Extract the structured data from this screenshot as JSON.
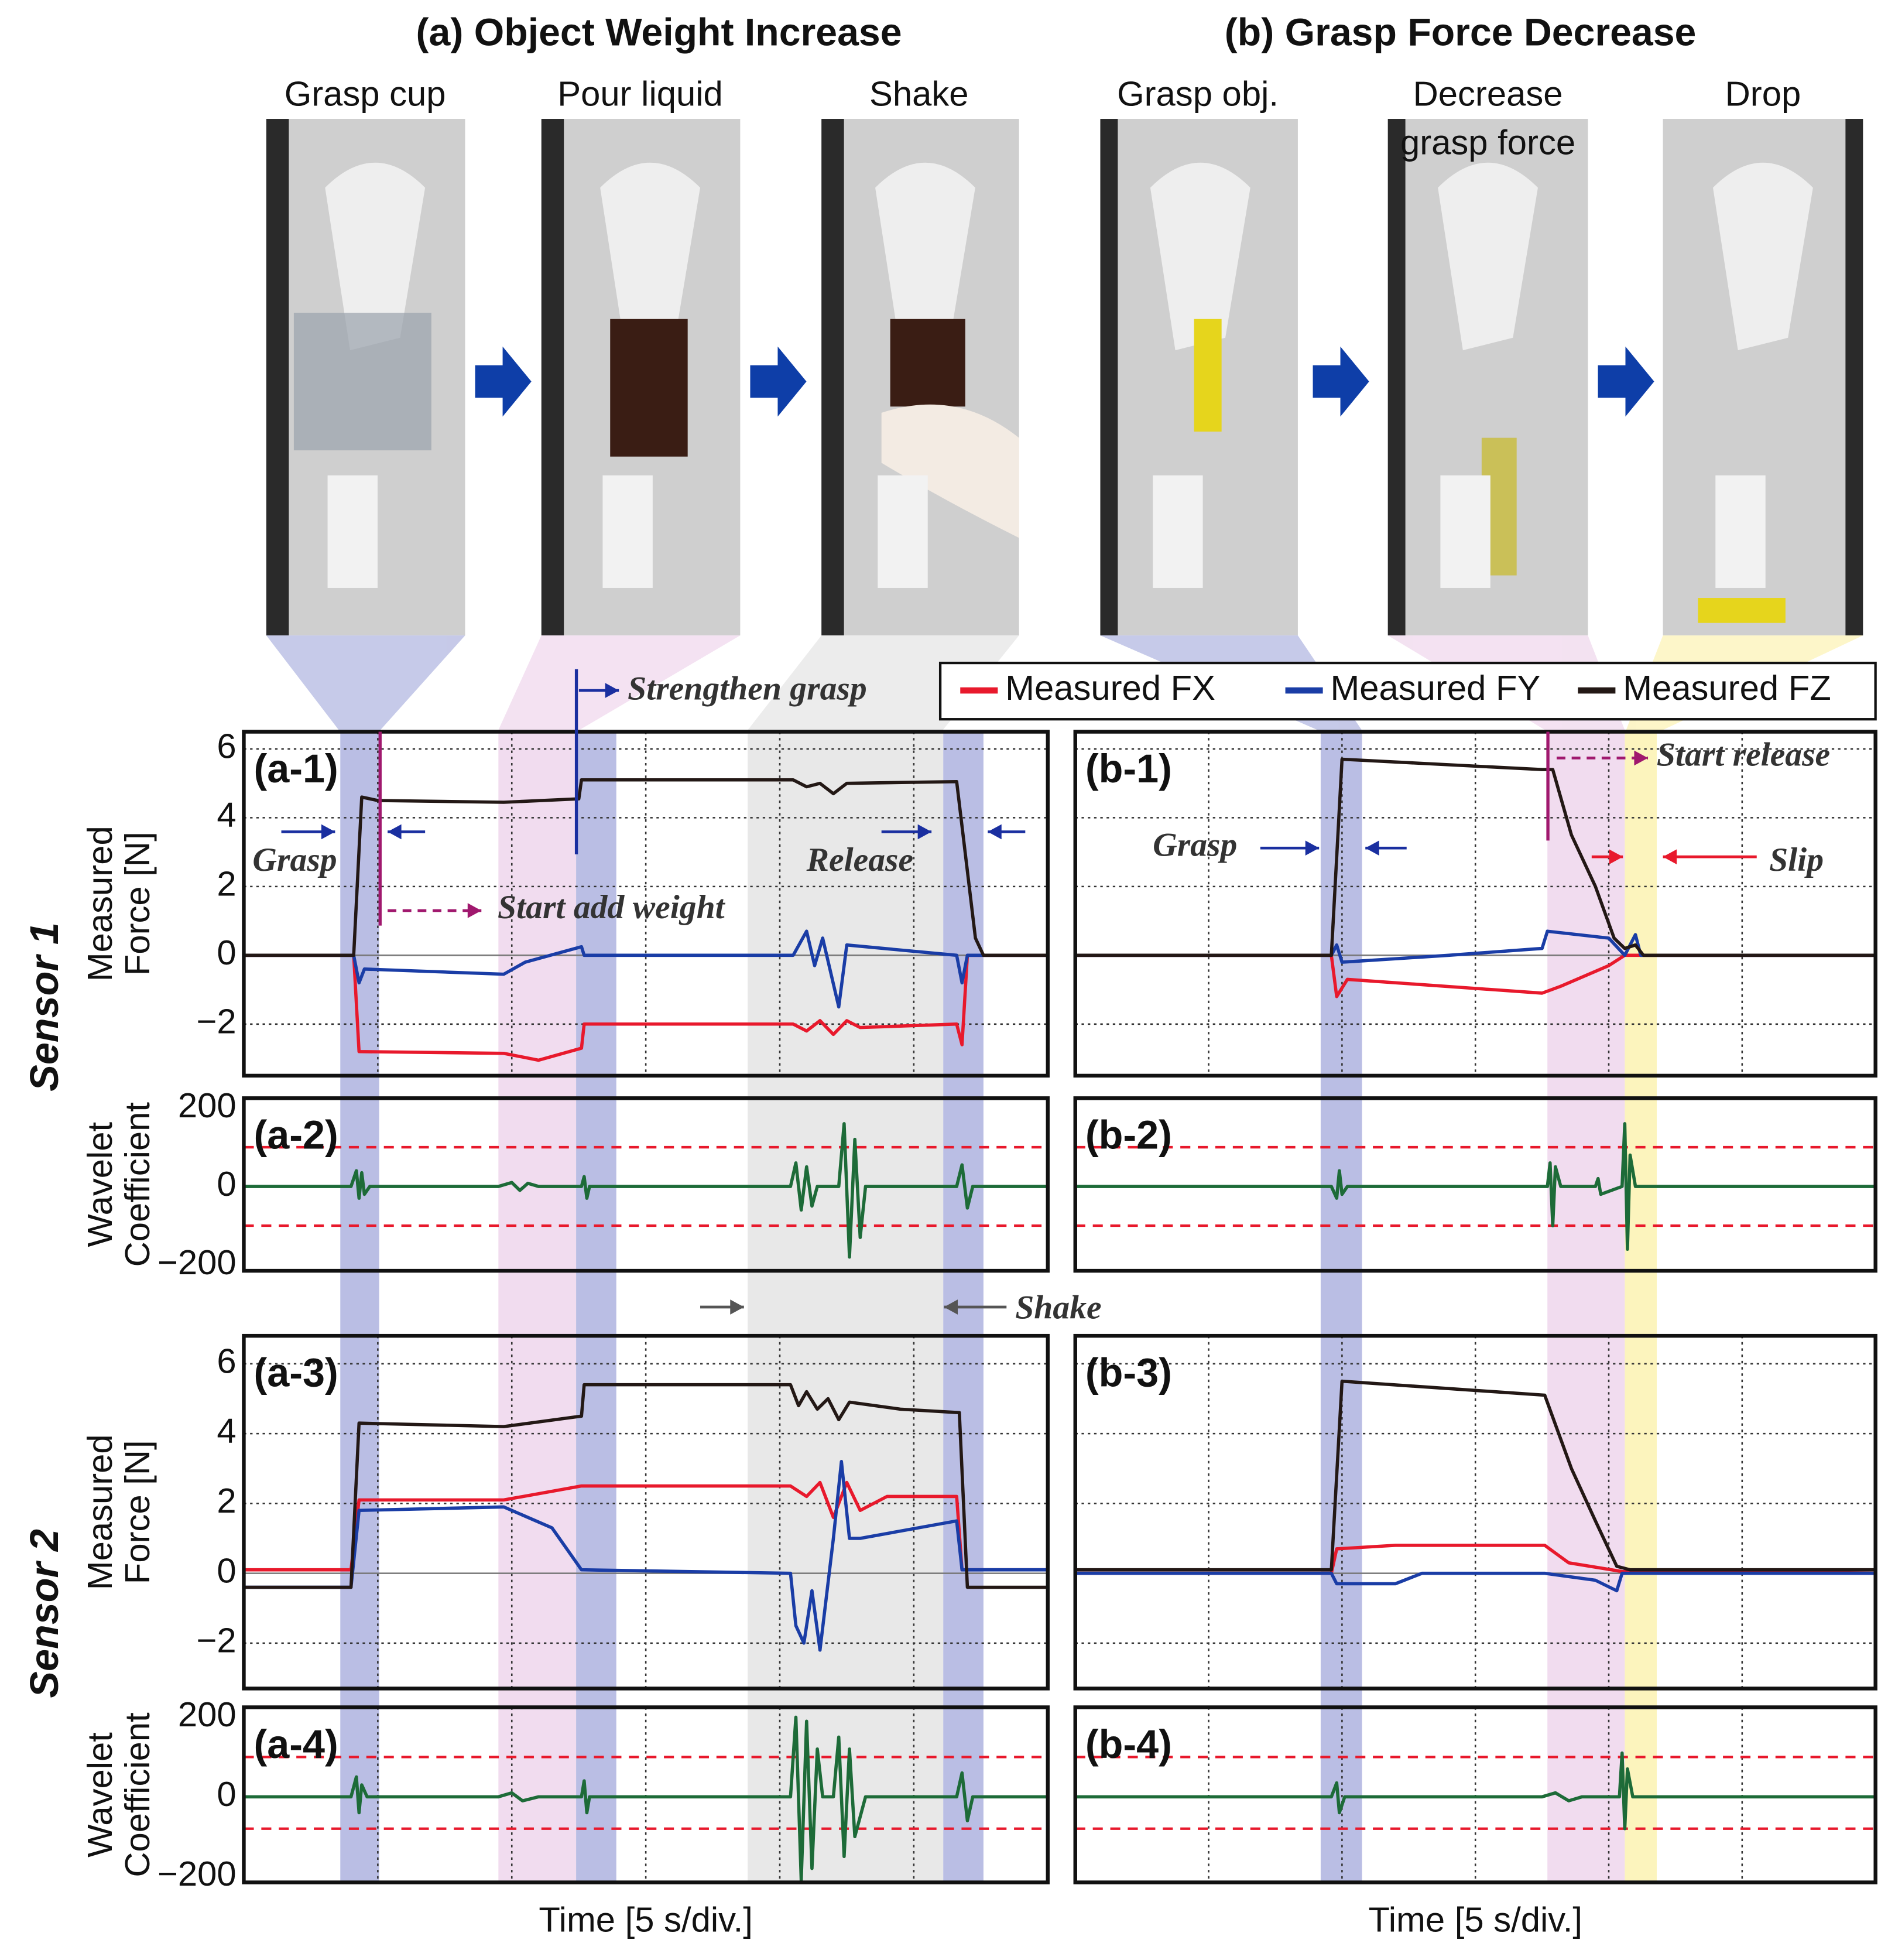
{
  "figure": {
    "titles": [
      "(a) Object Weight Increase",
      "(b) Grasp Force Decrease"
    ],
    "photo_captions": [
      "Grasp cup",
      "Pour liquid",
      "Shake",
      "Grasp obj.",
      [
        "Decrease",
        "grasp force"
      ],
      "Drop"
    ],
    "row_labels": [
      "Sensor 1",
      "Sensor 2"
    ]
  },
  "chart_data": [
    {
      "type": "line",
      "title": "(a-1)",
      "ylabel": [
        "Measured",
        "Force [N]"
      ],
      "grid": "both",
      "xlim": [
        0,
        30
      ],
      "xticks": [
        5,
        10,
        15,
        20,
        25
      ],
      "ylim": [
        -3.5,
        6.5
      ],
      "yticks": [
        {
          "value": -2,
          "label": "−2"
        },
        0,
        2,
        4,
        6
      ],
      "regions": [
        {
          "start": 3.6,
          "end": 5.05,
          "color": "#aeb3df"
        },
        {
          "start": 9.5,
          "end": 12.4,
          "color": "#efd6ec"
        },
        {
          "start": 12.4,
          "end": 13.9,
          "color": "#aeb3df"
        },
        {
          "start": 18.8,
          "end": 26.1,
          "color": "#e4e4e4"
        },
        {
          "start": 26.1,
          "end": 27.6,
          "color": "#aeb3df"
        }
      ],
      "annotations": [
        "Strengthen grasp",
        "Grasp",
        "Release",
        "Start add weight"
      ],
      "series": [
        {
          "name": "Measured FX",
          "color": "#e8192c",
          "x": [
            0,
            4.1,
            4.3,
            9.7,
            11,
            12.6,
            12.7,
            20.5,
            21,
            21.5,
            22,
            22.5,
            23,
            26.6,
            26.8,
            27,
            30
          ],
          "values": [
            0,
            0,
            -2.8,
            -2.85,
            -3.05,
            -2.7,
            -2.0,
            -2.0,
            -2.2,
            -1.9,
            -2.3,
            -1.9,
            -2.1,
            -2.0,
            -2.6,
            0,
            0
          ]
        },
        {
          "name": "Measured FY",
          "color": "#1a3da6",
          "x": [
            0,
            4.1,
            4.3,
            4.5,
            9.7,
            10.5,
            12.6,
            12.7,
            20.5,
            21,
            21.3,
            21.6,
            22.2,
            22.5,
            26.6,
            26.8,
            27,
            30
          ],
          "values": [
            0,
            0,
            -0.8,
            -0.4,
            -0.55,
            -0.2,
            0.25,
            0,
            0,
            0.7,
            -0.3,
            0.5,
            -1.5,
            0.3,
            0,
            -0.8,
            0,
            0
          ]
        },
        {
          "name": "Measured FZ",
          "color": "#231815",
          "x": [
            0,
            4.1,
            4.4,
            5,
            9.7,
            12.5,
            12.6,
            20.5,
            21,
            21.5,
            22,
            22.5,
            26.6,
            27.3,
            27.6,
            30
          ],
          "values": [
            0,
            0,
            4.6,
            4.5,
            4.45,
            4.55,
            5.1,
            5.1,
            4.9,
            5.0,
            4.7,
            5.0,
            5.05,
            0.5,
            0,
            0
          ]
        }
      ]
    },
    {
      "type": "line",
      "title": "(a-2)",
      "ylabel": [
        "Wavelet",
        "Coefficient"
      ],
      "grid": "none",
      "xlim": [
        0,
        30
      ],
      "ylim": [
        -215,
        225
      ],
      "yticks": [
        {
          "value": -200,
          "label": "−200"
        },
        0,
        200
      ],
      "thresholds": [
        100,
        -100
      ],
      "threshold_color": "#e8192c",
      "annotations": [
        "Shake"
      ],
      "series": [
        {
          "color": "#1d6b38",
          "x": [
            0,
            4,
            4.2,
            4.3,
            4.4,
            4.5,
            4.7,
            9.5,
            10,
            10.3,
            10.6,
            11,
            12.6,
            12.7,
            12.8,
            12.9,
            20.4,
            20.6,
            20.8,
            21,
            21.2,
            21.4,
            22.2,
            22.4,
            22.6,
            22.8,
            23,
            23.2,
            26.6,
            26.8,
            27,
            27.2,
            30
          ],
          "values": [
            0,
            0,
            40,
            -30,
            35,
            -20,
            0,
            0,
            10,
            -10,
            8,
            0,
            0,
            25,
            -30,
            0,
            0,
            60,
            -60,
            50,
            -50,
            0,
            0,
            160,
            -180,
            120,
            -130,
            0,
            0,
            55,
            -55,
            0,
            0
          ]
        }
      ]
    },
    {
      "type": "line",
      "title": "(a-3)",
      "ylabel": [
        "Measured",
        "Force [N]"
      ],
      "grid": "both",
      "xlim": [
        0,
        30
      ],
      "xticks": [
        5,
        10,
        15,
        20,
        25
      ],
      "ylim": [
        -3.3,
        6.8
      ],
      "yticks": [
        {
          "value": -2,
          "label": "−2"
        },
        0,
        2,
        4,
        6
      ],
      "series": [
        {
          "color": "#e8192c",
          "x": [
            0,
            4,
            4.3,
            9.7,
            12.6,
            20.4,
            21,
            21.5,
            22,
            22.5,
            23,
            24,
            26.6,
            26.8,
            30
          ],
          "values": [
            0.1,
            0.1,
            2.1,
            2.1,
            2.5,
            2.5,
            2.2,
            2.6,
            1.6,
            2.6,
            1.8,
            2.2,
            2.2,
            0.1,
            0.1
          ]
        },
        {
          "color": "#1a3da6",
          "x": [
            0,
            4,
            4.3,
            9.7,
            11.5,
            12.6,
            20.4,
            20.6,
            20.9,
            21.2,
            21.5,
            22,
            22.3,
            22.6,
            23,
            26.6,
            26.8,
            30
          ],
          "values": [
            -0.4,
            -0.4,
            1.8,
            1.9,
            1.3,
            0.1,
            0,
            -1.5,
            -2.0,
            -0.5,
            -2.2,
            1.0,
            3.2,
            1.0,
            1.0,
            1.5,
            0.1,
            0.1
          ]
        },
        {
          "color": "#231815",
          "x": [
            0,
            4,
            4.3,
            9.7,
            12.6,
            12.7,
            20.4,
            20.7,
            21,
            21.4,
            21.8,
            22.2,
            22.6,
            24.5,
            26.7,
            27,
            30
          ],
          "values": [
            -0.4,
            -0.4,
            4.3,
            4.2,
            4.5,
            5.4,
            5.4,
            4.8,
            5.2,
            4.7,
            5.0,
            4.4,
            4.9,
            4.7,
            4.6,
            -0.4,
            -0.4
          ]
        }
      ]
    },
    {
      "type": "line",
      "title": "(a-4)",
      "ylabel": [
        "Wavelet",
        "Coefficient"
      ],
      "xlabel": "Time [5 s/div.]",
      "grid": "x",
      "xlim": [
        0,
        30
      ],
      "xticks": [
        5,
        10,
        15,
        20,
        25
      ],
      "ylim": [
        -215,
        225
      ],
      "yticks": [
        {
          "value": -200,
          "label": "−200"
        },
        0,
        200
      ],
      "thresholds": [
        100,
        -80
      ],
      "threshold_color": "#e8192c",
      "series": [
        {
          "color": "#1d6b38",
          "x": [
            0,
            4,
            4.2,
            4.3,
            4.4,
            4.6,
            9.5,
            10,
            10.4,
            11,
            12.6,
            12.7,
            12.8,
            12.9,
            20.4,
            20.6,
            20.8,
            21,
            21.2,
            21.4,
            21.6,
            22,
            22.2,
            22.4,
            22.6,
            22.8,
            23.2,
            26.6,
            26.8,
            27,
            27.2,
            30
          ],
          "values": [
            0,
            0,
            50,
            -40,
            30,
            0,
            0,
            10,
            -10,
            0,
            0,
            40,
            -40,
            0,
            0,
            200,
            -210,
            190,
            -180,
            120,
            0,
            0,
            150,
            -150,
            120,
            -100,
            0,
            0,
            60,
            -60,
            0,
            0
          ]
        }
      ]
    },
    {
      "type": "line",
      "title": "(b-1)",
      "grid": "both",
      "ytick_labels": false,
      "xlim": [
        0,
        30
      ],
      "xticks": [
        5,
        10,
        15,
        20,
        25
      ],
      "ylim": [
        -3.5,
        6.5
      ],
      "yticks": [
        -2,
        0,
        2,
        4,
        6
      ],
      "regions": [
        {
          "start": 9.2,
          "end": 10.75,
          "color": "#aeb3df"
        },
        {
          "start": 17.7,
          "end": 20.6,
          "color": "#efd6ec"
        },
        {
          "start": 20.6,
          "end": 21.8,
          "color": "#fcf2b2"
        }
      ],
      "annotations": [
        "Start release",
        "Grasp",
        "Slip"
      ],
      "series": [
        {
          "color": "#e8192c",
          "x": [
            0,
            9.6,
            9.8,
            10.2,
            17.5,
            18.2,
            20,
            20.6,
            30
          ],
          "values": [
            0,
            0,
            -1.2,
            -0.7,
            -1.1,
            -0.9,
            -0.3,
            0,
            0
          ]
        },
        {
          "color": "#1a3da6",
          "x": [
            0,
            9.6,
            9.8,
            10,
            14,
            17.5,
            17.7,
            20,
            20.6,
            21,
            21.2,
            30
          ],
          "values": [
            0,
            0,
            0.3,
            -0.2,
            0,
            0.2,
            0.7,
            0.5,
            0,
            0.6,
            0,
            0
          ]
        },
        {
          "color": "#231815",
          "x": [
            0,
            9.6,
            10,
            17.5,
            17.9,
            18.6,
            19.5,
            20.2,
            20.6,
            21,
            21.3,
            30
          ],
          "values": [
            0,
            0,
            5.7,
            5.4,
            5.4,
            3.5,
            2,
            0.5,
            0.2,
            0.3,
            0,
            0
          ]
        }
      ]
    },
    {
      "type": "line",
      "title": "(b-2)",
      "grid": "none",
      "xlim": [
        0,
        30
      ],
      "ylim": [
        -215,
        225
      ],
      "thresholds": [
        100,
        -100
      ],
      "threshold_color": "#e8192c",
      "series": [
        {
          "color": "#1d6b38",
          "x": [
            0,
            9.6,
            9.8,
            9.9,
            10,
            10.2,
            17.7,
            17.8,
            17.9,
            18,
            18.2,
            19.5,
            19.6,
            19.7,
            20.5,
            20.6,
            20.7,
            20.8,
            21,
            30
          ],
          "values": [
            0,
            0,
            -30,
            40,
            -20,
            0,
            0,
            60,
            -100,
            50,
            0,
            0,
            20,
            -20,
            0,
            160,
            -160,
            80,
            0,
            0
          ]
        }
      ]
    },
    {
      "type": "line",
      "title": "(b-3)",
      "grid": "both",
      "ytick_labels": false,
      "xlim": [
        0,
        30
      ],
      "xticks": [
        5,
        10,
        15,
        20,
        25
      ],
      "ylim": [
        -3.3,
        6.8
      ],
      "yticks": [
        -2,
        0,
        2,
        4,
        6
      ],
      "series": [
        {
          "color": "#e8192c",
          "x": [
            0,
            9.6,
            9.8,
            12,
            17.6,
            18.5,
            20.5,
            30
          ],
          "values": [
            0,
            0,
            0.7,
            0.8,
            0.8,
            0.3,
            0.05,
            0
          ]
        },
        {
          "color": "#1a3da6",
          "x": [
            0,
            9.6,
            9.8,
            12,
            13,
            17.6,
            19.5,
            20.3,
            20.5,
            30
          ],
          "values": [
            0,
            0,
            -0.3,
            -0.3,
            0,
            0,
            -0.2,
            -0.5,
            0,
            0
          ]
        },
        {
          "color": "#231815",
          "x": [
            0,
            9.6,
            10,
            17.6,
            18.6,
            19.5,
            20.3,
            20.8,
            30
          ],
          "values": [
            0.1,
            0.1,
            5.5,
            5.1,
            3,
            1.5,
            0.2,
            0.1,
            0.1
          ]
        }
      ]
    },
    {
      "type": "line",
      "title": "(b-4)",
      "xlabel": "Time [5 s/div.]",
      "grid": "x",
      "xlim": [
        0,
        30
      ],
      "xticks": [
        5,
        10,
        15,
        20,
        25
      ],
      "ylim": [
        -215,
        225
      ],
      "thresholds": [
        100,
        -80
      ],
      "threshold_color": "#e8192c",
      "series": [
        {
          "color": "#1d6b38",
          "x": [
            0,
            9.6,
            9.8,
            9.9,
            10.1,
            17.5,
            18,
            18.5,
            19,
            20.4,
            20.5,
            20.6,
            20.7,
            20.9,
            30
          ],
          "values": [
            0,
            0,
            35,
            -40,
            0,
            0,
            10,
            -10,
            0,
            0,
            110,
            -80,
            70,
            0,
            0
          ]
        }
      ]
    }
  ]
}
